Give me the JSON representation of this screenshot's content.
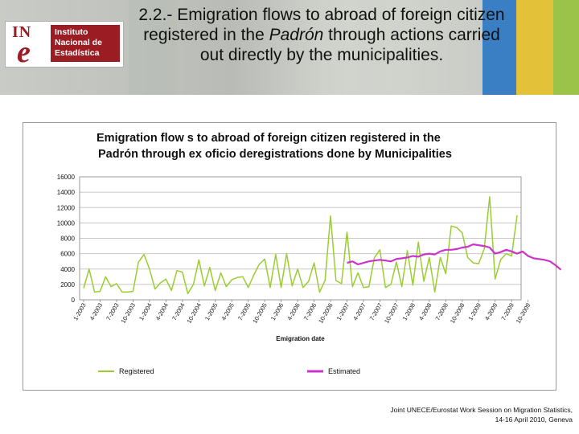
{
  "slide": {
    "title_prefix": "2.2.- Emigration flows to abroad of foreign citizen registered in the ",
    "title_italic": "Padrón",
    "title_suffix": " through actions carried out directly by the municipalities."
  },
  "logo": {
    "acronym_top": "IN",
    "acronym_bottom": "e",
    "name_line1": "Instituto",
    "name_line2": "Nacional de",
    "name_line3": "Estadística"
  },
  "footer": {
    "line1": "Joint UNECE/Eurostat Work Session on Migration Statistics,",
    "line2": "14-16 April 2010, Geneva"
  },
  "colors": {
    "registered": "#9acd32",
    "estimated": "#cc33cc",
    "grid": "#c8c8c8"
  },
  "chart_data": {
    "type": "line",
    "title_line1": "Emigration flow s to abroad of foreign citizen registered in the",
    "title_line2": "Padrón through ex oficio deregistrations done by Municipalities",
    "xlabel": "Emigration date",
    "ylabel": "",
    "ylim": [
      0,
      16000
    ],
    "yticks": [
      0,
      2000,
      4000,
      6000,
      8000,
      10000,
      12000,
      14000,
      16000
    ],
    "ytick_labels": [
      "0",
      "2000",
      "4000",
      "6000",
      "8000",
      "10000",
      "12000",
      "14000",
      "16000"
    ],
    "grid": true,
    "legend_position": "bottom",
    "x_tick_labels": [
      "1-2003",
      "4-2003",
      "7-2003",
      "10-2003",
      "1-2004",
      "4-2004",
      "7-2004",
      "10-2004",
      "1-2005",
      "4-2005",
      "7-2005",
      "10-2005",
      "1-2006",
      "4-2006",
      "7-2006",
      "10-2006",
      "1-2007",
      "4-2007",
      "7-2007",
      "10-2007",
      "1-2008",
      "4-2008",
      "7-2008",
      "10-2008",
      "1-2009",
      "4-2009",
      "7-2009",
      "10-2009"
    ],
    "x_tick_step": 3,
    "series": [
      {
        "name": "Registered",
        "start_index": 0,
        "values": [
          1500,
          4000,
          1000,
          1100,
          3000,
          1700,
          2100,
          1000,
          1000,
          1100,
          4900,
          5900,
          4000,
          1400,
          2200,
          2700,
          1200,
          3800,
          3600,
          800,
          2000,
          5200,
          1800,
          4200,
          1200,
          3500,
          1700,
          2600,
          2900,
          3000,
          1600,
          3200,
          4600,
          5300,
          1600,
          5900,
          1600,
          6000,
          1800,
          4000,
          1600,
          2400,
          4800,
          1000,
          2500,
          10900,
          2500,
          2100,
          8800,
          1700,
          3500,
          1600,
          1700,
          5500,
          6500,
          1600,
          2000,
          4900,
          1700,
          6400,
          1900,
          7500,
          2400,
          5500,
          1000,
          5500,
          3400,
          9600,
          9400,
          8700,
          5500,
          4800,
          4700,
          6600,
          13400,
          2700,
          5200,
          6000,
          5700,
          11000
        ]
      },
      {
        "name": "Estimated",
        "start_index": 48,
        "values": [
          4800,
          5000,
          4600,
          4800,
          5000,
          5100,
          5200,
          5100,
          5000,
          5300,
          5400,
          5500,
          5700,
          5600,
          5900,
          6000,
          5900,
          6300,
          6500,
          6500,
          6600,
          6800,
          6900,
          7200,
          7100,
          7000,
          6800,
          6000,
          6200,
          6500,
          6300,
          6000,
          6300,
          5700,
          5400,
          5300,
          5200,
          5000,
          4500,
          3900
        ]
      }
    ]
  }
}
